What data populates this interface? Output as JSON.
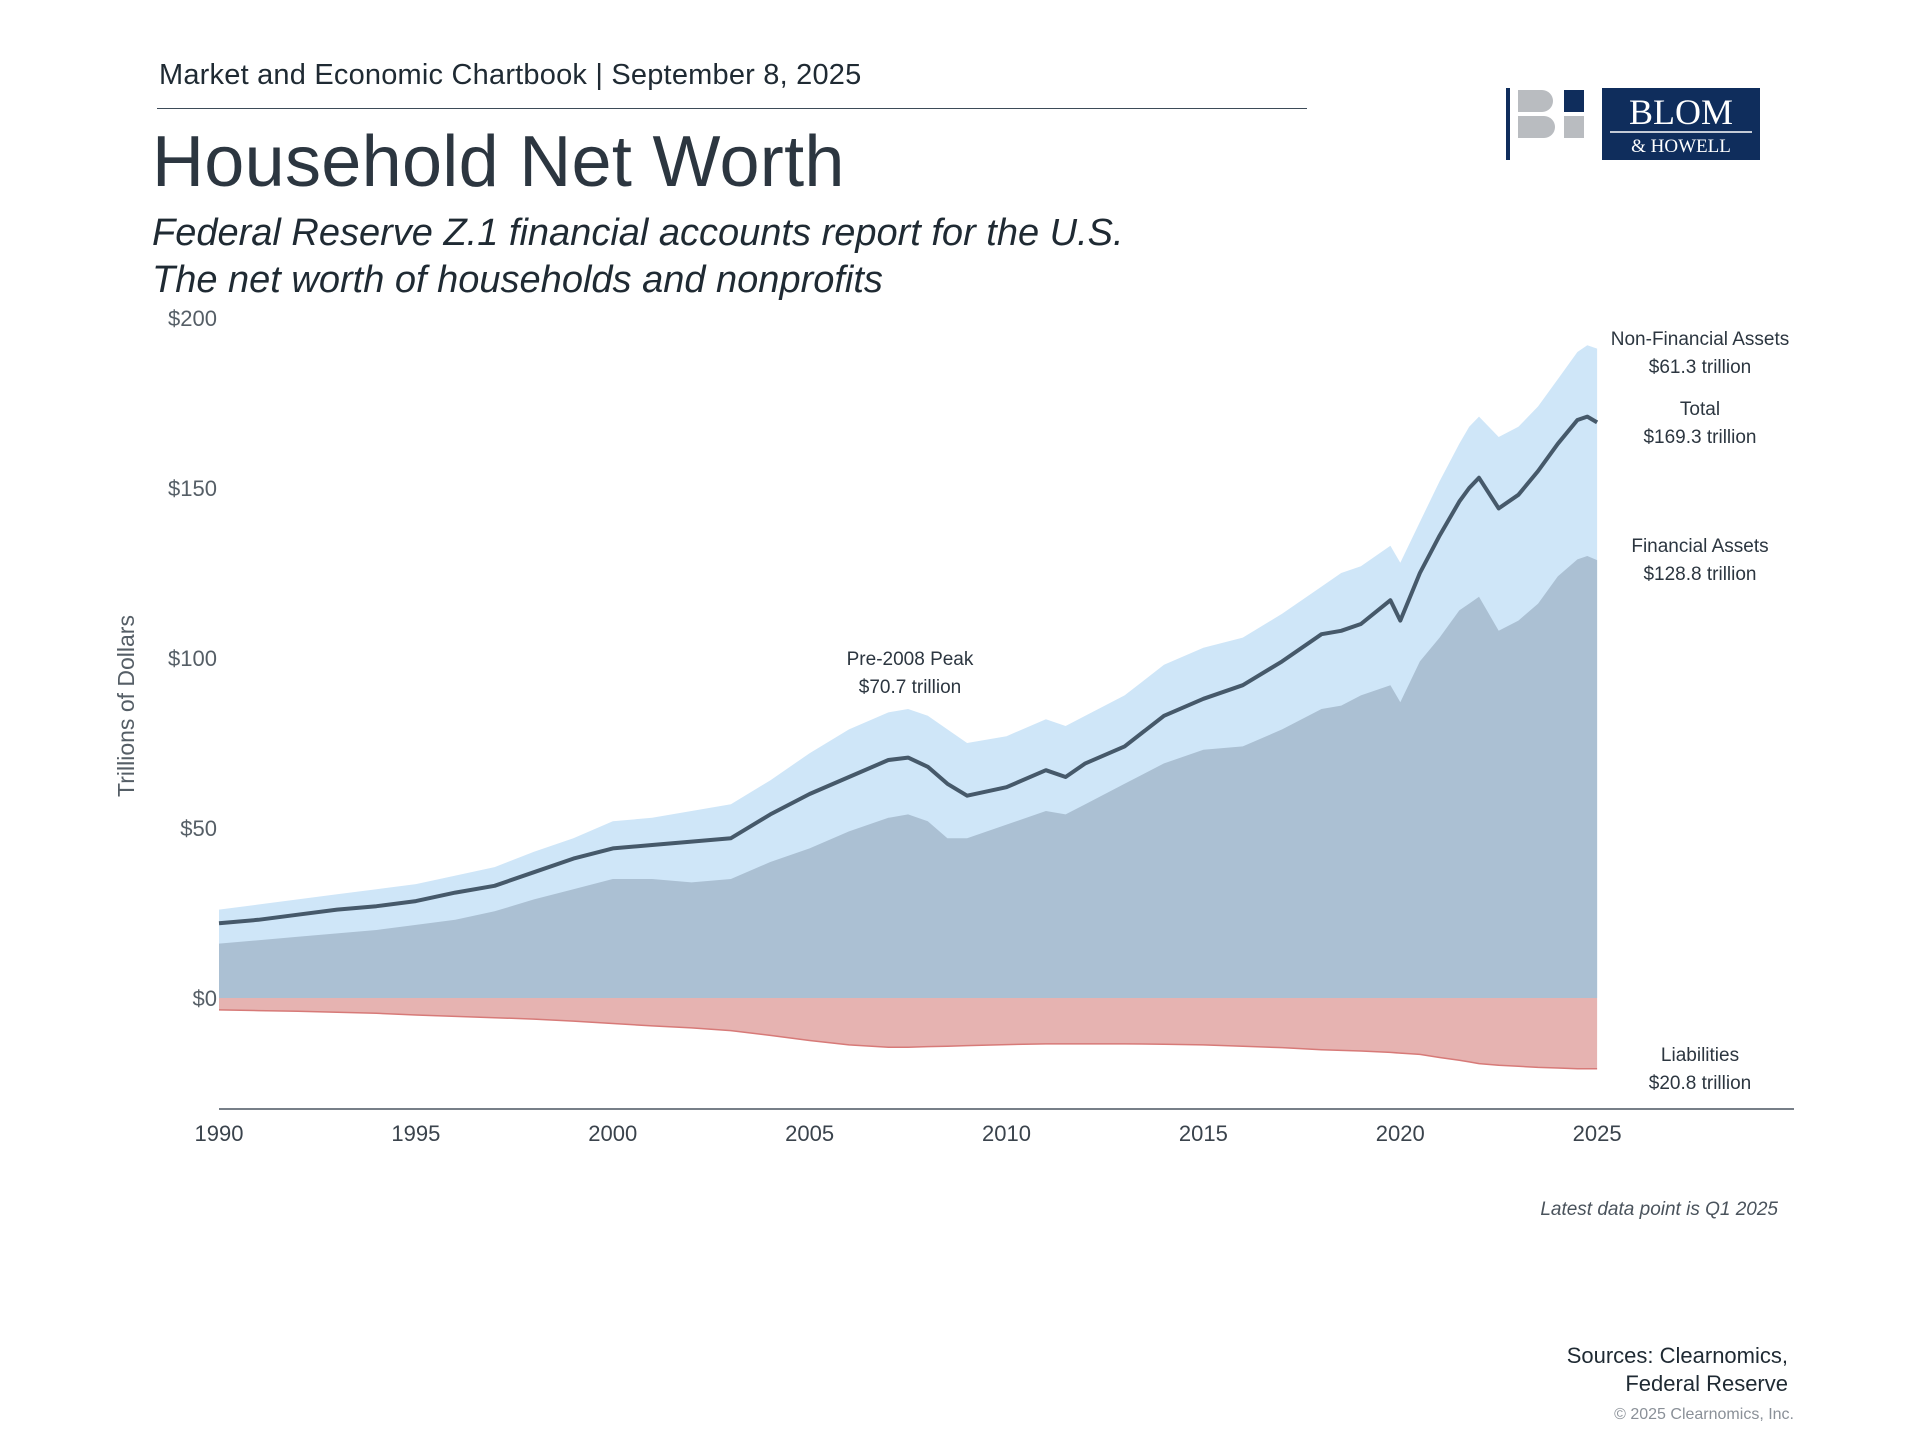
{
  "header": {
    "line": "Market and Economic Chartbook | September 8, 2025",
    "title": "Household Net Worth",
    "subtitle_line1": "Federal Reserve Z.1 financial accounts report for the U.S.",
    "subtitle_line2": "The net worth of households and nonprofits"
  },
  "logo": {
    "text_line1": "BLOM",
    "text_line2": "& HOWELL",
    "brand_color": "#0f2d5c",
    "gray": "#b9bcc0"
  },
  "footer": {
    "note": "Latest data point is Q1 2025",
    "sources_line1": "Sources: Clearnomics,",
    "sources_line2": "Federal Reserve",
    "copyright": "© 2025 Clearnomics, Inc."
  },
  "chart_data": {
    "type": "area",
    "ylabel": "Trillions of Dollars",
    "y_ticks": [
      "$200",
      "$150",
      "$100",
      "$50",
      "$0"
    ],
    "y_tick_values": [
      200,
      150,
      100,
      50,
      0
    ],
    "x_ticks": [
      "1990",
      "1995",
      "2000",
      "2005",
      "2010",
      "2015",
      "2020",
      "2025"
    ],
    "x_tick_values": [
      1990,
      1995,
      2000,
      2005,
      2010,
      2015,
      2020,
      2025
    ],
    "xlim": [
      1990,
      2030
    ],
    "ylim": [
      -32,
      200
    ],
    "colors": {
      "non_financial": "#cfe6f8",
      "financial": "#abc0d3",
      "total_line": "#46596a",
      "liabilities": "#e6b3b1",
      "liabilities_edge": "#d77a78"
    },
    "x": [
      1990.0,
      1991.0,
      1992.0,
      1993.0,
      1994.0,
      1995.0,
      1996.0,
      1997.0,
      1998.0,
      1999.0,
      2000.0,
      2001.0,
      2002.0,
      2003.0,
      2004.0,
      2005.0,
      2006.0,
      2007.0,
      2007.5,
      2008.0,
      2008.5,
      2009.0,
      2010.0,
      2011.0,
      2011.5,
      2012.0,
      2013.0,
      2014.0,
      2015.0,
      2016.0,
      2017.0,
      2018.0,
      2018.5,
      2019.0,
      2019.75,
      2020.0,
      2020.5,
      2021.0,
      2021.5,
      2021.75,
      2022.0,
      2022.5,
      2023.0,
      2023.5,
      2024.0,
      2024.5,
      2024.75,
      2025.0
    ],
    "series": [
      {
        "name": "Non-Financial Assets",
        "label_value": "$61.3 trillion",
        "values": [
          26,
          27.5,
          29,
          30.5,
          32,
          33.5,
          36,
          38.5,
          43,
          47,
          52,
          53,
          55,
          57,
          64,
          72,
          79,
          84,
          85,
          83,
          79,
          75,
          77,
          82,
          80,
          83,
          89,
          98,
          103,
          106,
          113,
          121,
          125,
          127,
          133,
          128,
          140,
          152,
          163,
          168,
          171,
          165,
          168,
          174,
          182,
          190,
          192,
          191
        ]
      },
      {
        "name": "Total",
        "label_value": "$169.3 trillion",
        "values": [
          22,
          23,
          24.5,
          26,
          27,
          28.5,
          31,
          33,
          37,
          41,
          44,
          45,
          46,
          47,
          54,
          60,
          65,
          70,
          70.7,
          68,
          63,
          59.5,
          62,
          67,
          65,
          69,
          74,
          83,
          88,
          92,
          99,
          107,
          108,
          110,
          117,
          111,
          125,
          136,
          146,
          150,
          153,
          144,
          148,
          155,
          163,
          170,
          171,
          169.3
        ]
      },
      {
        "name": "Financial Assets",
        "label_value": "$128.8 trillion",
        "values": [
          16,
          17,
          18,
          19,
          20,
          21.5,
          23,
          25.5,
          29,
          32,
          35,
          35,
          34,
          35,
          40,
          44,
          49,
          53,
          54,
          52,
          47,
          47,
          51,
          55,
          54,
          57,
          63,
          69,
          73,
          74,
          79,
          85,
          86,
          89,
          92,
          87,
          99,
          106,
          114,
          116,
          118,
          108,
          111,
          116,
          124,
          129,
          130,
          128.8
        ]
      },
      {
        "name": "Liabilities",
        "label_value": "$20.8 trillion",
        "values": [
          -3.5,
          -3.7,
          -3.9,
          -4.2,
          -4.5,
          -5,
          -5.4,
          -5.8,
          -6.2,
          -6.8,
          -7.5,
          -8.2,
          -8.8,
          -9.6,
          -11,
          -12.5,
          -13.8,
          -14.5,
          -14.5,
          -14.3,
          -14.2,
          -14,
          -13.7,
          -13.5,
          -13.5,
          -13.5,
          -13.5,
          -13.6,
          -13.8,
          -14.2,
          -14.6,
          -15.2,
          -15.4,
          -15.6,
          -16,
          -16.2,
          -16.6,
          -17.5,
          -18.3,
          -18.8,
          -19.3,
          -19.8,
          -20.1,
          -20.4,
          -20.6,
          -20.8,
          -20.8,
          -20.8
        ]
      }
    ],
    "annotations": [
      {
        "line1": "Pre-2008 Peak",
        "line2": "$70.7 trillion"
      }
    ],
    "grid": false
  }
}
